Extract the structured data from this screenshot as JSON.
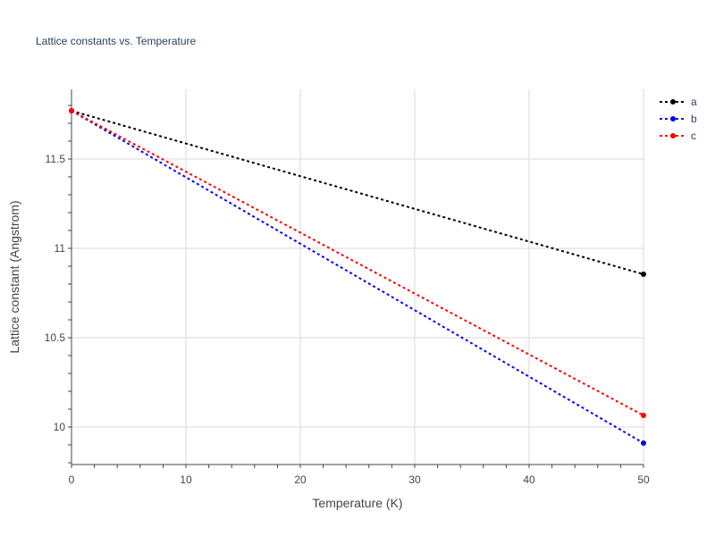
{
  "chart_data": {
    "type": "line",
    "title": "Lattice constants vs. Temperature",
    "xlabel": "Temperature (K)",
    "ylabel": "Lattice constant (Angstrom)",
    "xlim": [
      0,
      50
    ],
    "ylim": [
      9.79,
      11.89
    ],
    "x_ticks": [
      "0",
      "10",
      "20",
      "30",
      "40",
      "50"
    ],
    "y_ticks": [
      "10",
      "10.5",
      "11",
      "11.5"
    ],
    "grid": true,
    "legend_position": "top-right",
    "series": [
      {
        "name": "a",
        "color": "#000000",
        "x": [
          0,
          50
        ],
        "y": [
          11.77,
          10.855
        ]
      },
      {
        "name": "b",
        "color": "#0000ff",
        "x": [
          0,
          50
        ],
        "y": [
          11.77,
          9.91
        ]
      },
      {
        "name": "c",
        "color": "#ff0000",
        "x": [
          0,
          50
        ],
        "y": [
          11.77,
          10.065
        ]
      }
    ]
  }
}
